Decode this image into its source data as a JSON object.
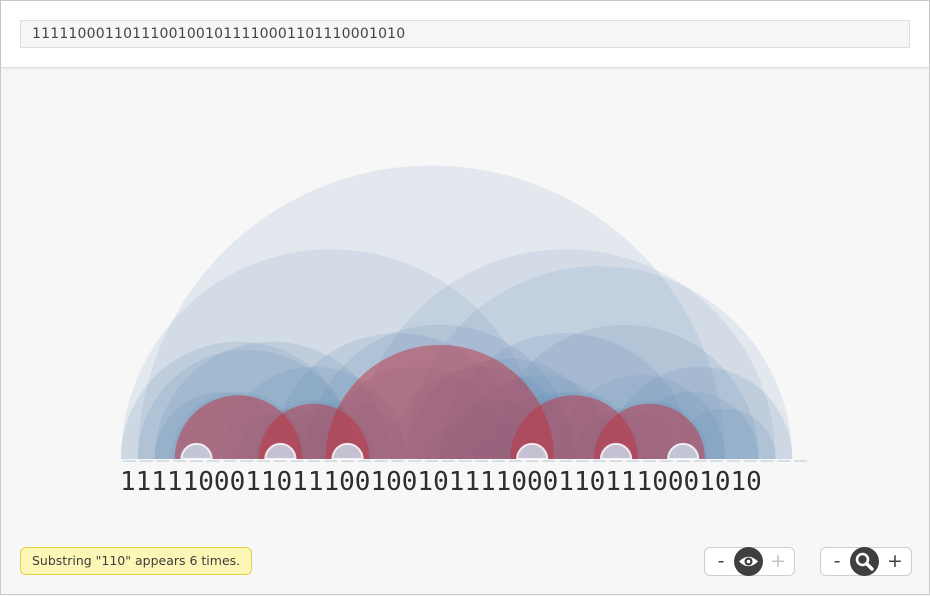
{
  "sequence": "111110001101110010010111100011011100010 10",
  "input": {
    "value": "1111100011011100100101111000110111000101 0"
  },
  "status": {
    "text": "Substring \"110\" appears 6 times."
  },
  "controls": {
    "visibility": {
      "minus": "-",
      "plus": "+",
      "icon": "eye-icon"
    },
    "zoom": {
      "minus": "-",
      "plus": "+",
      "icon": "magnifier-icon"
    }
  },
  "colors": {
    "arc": "#6b8fb8",
    "highlight": "#c0323f",
    "status_bg": "#fdf7b7",
    "status_border": "#e8cd3e"
  }
}
